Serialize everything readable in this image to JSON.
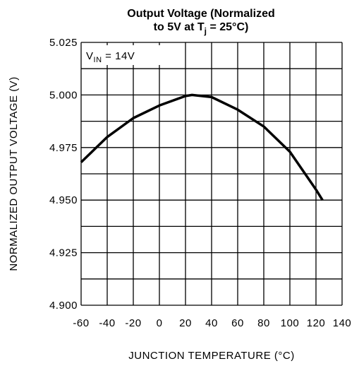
{
  "chart_data": {
    "type": "line",
    "title": {
      "line1": "Output Voltage (Normalized",
      "line2_pre": "to 5V at T",
      "line2_sub": "j",
      "line2_post": " = 25°C)"
    },
    "annotation": {
      "pre": "V",
      "sub": "IN",
      "post": " = 14V"
    },
    "xlabel": "JUNCTION TEMPERATURE (°C)",
    "ylabel": "NORMALIZED OUTPUT VOLTAGE (V)",
    "xlim": [
      -60,
      140
    ],
    "xticks": [
      -60,
      -40,
      -20,
      0,
      20,
      40,
      60,
      80,
      100,
      120,
      140
    ],
    "ylim": [
      4.9,
      5.025
    ],
    "yticks": [
      {
        "value": 4.9,
        "label": "4.900"
      },
      4.925,
      {
        "value": 4.95,
        "label": "4.950"
      },
      4.975,
      {
        "value": 5.0,
        "label": "5.000"
      },
      5.025
    ],
    "y_minor_ticks": [
      4.9125,
      4.9375,
      4.9625,
      4.9875,
      5.0125
    ],
    "grid": true,
    "series": [
      {
        "color": "#000000",
        "x": [
          -60,
          -40,
          -20,
          0,
          20,
          25,
          40,
          60,
          80,
          100,
          120,
          125
        ],
        "values": [
          4.968,
          4.98,
          4.989,
          4.995,
          4.9995,
          5.0,
          4.999,
          4.993,
          4.985,
          4.973,
          4.955,
          4.95
        ]
      }
    ]
  }
}
